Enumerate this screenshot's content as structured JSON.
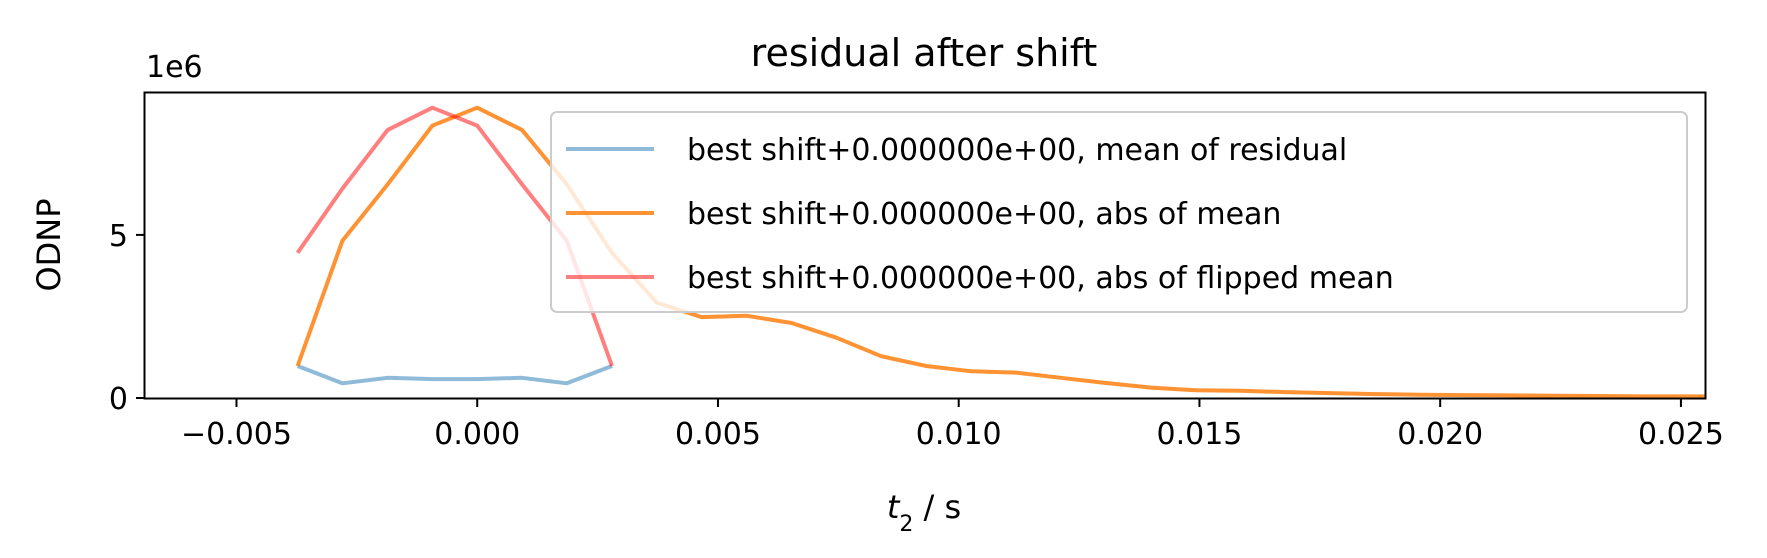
{
  "chart_data": {
    "type": "line",
    "title": "residual after shift",
    "xlabel_var": "t",
    "xlabel_sub": "2",
    "xlabel_rest": " / s",
    "ylabel": "ODNP",
    "y_offset_label": "1e6",
    "xlim": [
      -0.0069,
      0.0255
    ],
    "ylim": [
      0,
      9.35
    ],
    "x_ticks": [
      -0.005,
      0.0,
      0.005,
      0.01,
      0.015,
      0.02,
      0.025
    ],
    "x_tick_labels": [
      "−0.005",
      "0.000",
      "0.005",
      "0.010",
      "0.015",
      "0.020",
      "0.025"
    ],
    "y_ticks": [
      0,
      5
    ],
    "y_tick_labels": [
      "0",
      "5"
    ],
    "legend_position": "upper right",
    "series": [
      {
        "name": "best shift+0.000000e+00, mean of residual",
        "color": "#1f77b4",
        "opacity": 0.5,
        "x": [
          -0.00373,
          -0.0028,
          -0.00186,
          -0.00093,
          0.0,
          0.00093,
          0.00186,
          0.0028
        ],
        "y": [
          0.98,
          0.45,
          0.62,
          0.58,
          0.58,
          0.62,
          0.45,
          0.98
        ]
      },
      {
        "name": "best shift+0.000000e+00, abs of mean",
        "color": "#ff7f0e",
        "opacity": 0.85,
        "x": [
          -0.00373,
          -0.0028,
          -0.00186,
          -0.00093,
          0.0,
          0.00093,
          0.00186,
          0.0028,
          0.00373,
          0.00466,
          0.0056,
          0.00653,
          0.00746,
          0.00839,
          0.00933,
          0.01026,
          0.01119,
          0.01212,
          0.01306,
          0.01399,
          0.01492,
          0.01585,
          0.01678,
          0.01772,
          0.01865,
          0.01958,
          0.02051,
          0.02144,
          0.02238,
          0.02331,
          0.02424,
          0.02517,
          0.0255
        ],
        "y": [
          0.98,
          4.82,
          6.55,
          8.35,
          8.9,
          8.22,
          6.55,
          4.45,
          2.92,
          2.48,
          2.52,
          2.3,
          1.85,
          1.28,
          0.98,
          0.82,
          0.78,
          0.62,
          0.46,
          0.32,
          0.24,
          0.22,
          0.18,
          0.15,
          0.12,
          0.1,
          0.09,
          0.08,
          0.07,
          0.06,
          0.05,
          0.05,
          0.05
        ]
      },
      {
        "name": "best shift+0.000000e+00, abs of flipped mean",
        "color": "#ff0000",
        "opacity": 0.5,
        "x": [
          -0.00373,
          -0.0028,
          -0.00186,
          -0.00093,
          0.0,
          0.00093,
          0.00186,
          0.0028
        ],
        "y": [
          4.45,
          6.42,
          8.22,
          8.9,
          8.35,
          6.55,
          4.82,
          0.98
        ]
      }
    ]
  }
}
